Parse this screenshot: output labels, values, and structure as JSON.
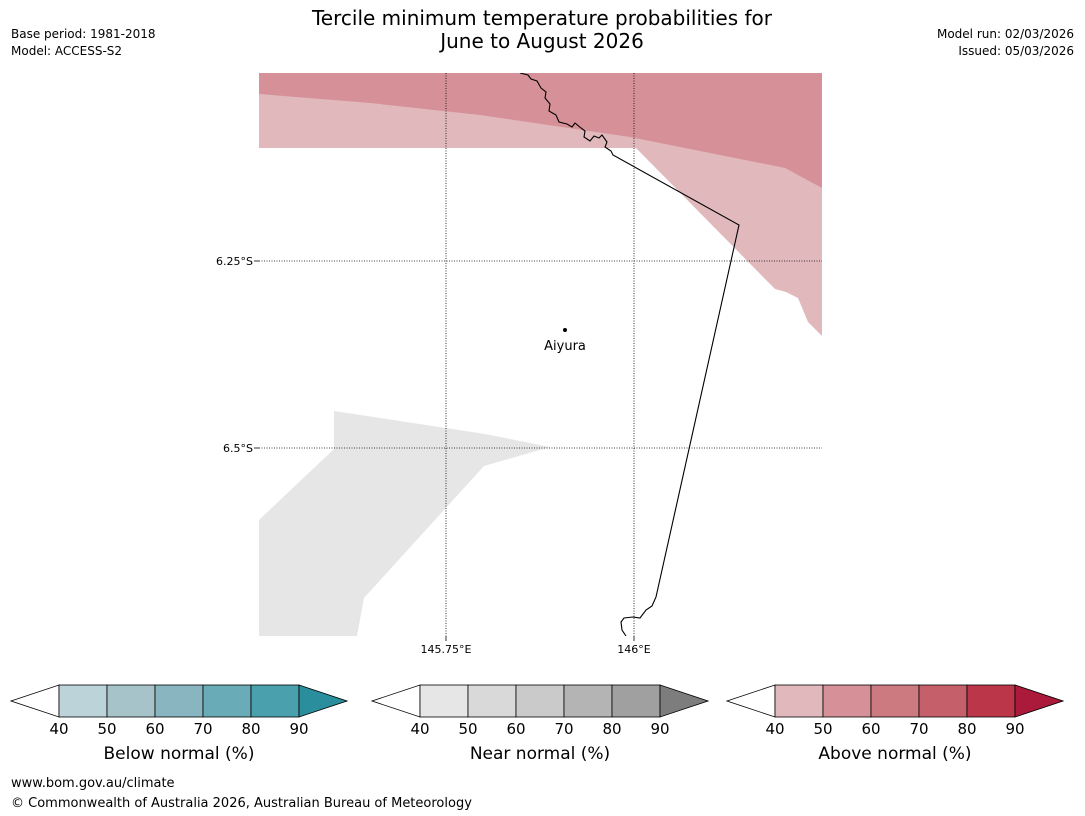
{
  "header": {
    "base_period": "Base period: 1981-2018",
    "model": "Model: ACCESS-S2",
    "title_line1": "Tercile minimum temperature probabilities for",
    "title_line2": "June to August 2026",
    "model_run": "Model run: 02/03/2026",
    "issued": "Issued: 05/03/2026"
  },
  "map": {
    "lat_labels": [
      "6.25°S",
      "6.5°S"
    ],
    "lon_labels": [
      "145.75°E",
      "146°E"
    ],
    "place": {
      "name": "Aiyura"
    },
    "colors": {
      "above_40_50": "#e1b9bd",
      "above_50_60": "#d69198",
      "near_40_50": "#e6e6e6"
    }
  },
  "legends": [
    {
      "title": "Below normal (%)",
      "ticks": [
        "40",
        "50",
        "60",
        "70",
        "80",
        "90"
      ],
      "colors": [
        "#ffffff",
        "#bcd3d9",
        "#a5c3c8",
        "#88b5c0",
        "#6aabb8",
        "#4aa0ad",
        "#2a8e9c"
      ]
    },
    {
      "title": "Near normal (%)",
      "ticks": [
        "40",
        "50",
        "60",
        "70",
        "80",
        "90"
      ],
      "colors": [
        "#ffffff",
        "#e6e6e6",
        "#d9d9d9",
        "#cacaca",
        "#b4b4b4",
        "#a0a0a0",
        "#7d7d7d"
      ]
    },
    {
      "title": "Above normal (%)",
      "ticks": [
        "40",
        "50",
        "60",
        "70",
        "80",
        "90"
      ],
      "colors": [
        "#ffffff",
        "#e1b9bd",
        "#d69198",
        "#cd7980",
        "#c5606b",
        "#bc364a",
        "#ab1a3a"
      ]
    }
  ],
  "footer": {
    "url": "www.bom.gov.au/climate",
    "copyright": "© Commonwealth of Australia 2026, Australian Bureau of Meteorology"
  }
}
